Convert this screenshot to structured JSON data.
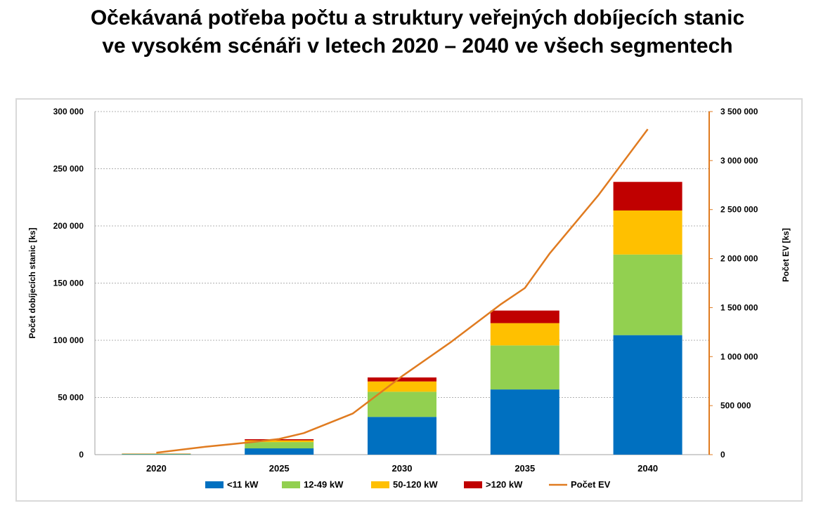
{
  "title_line1": "Očekávaná potřeba počtu a struktury veřejných dobíjecích stanic",
  "title_line2": "ve vysokém scénáři v letech 2020 – 2040 ve všech segmentech",
  "chart_data": {
    "type": "bar",
    "stacked": true,
    "categories": [
      "2020",
      "2025",
      "2030",
      "2035",
      "2040"
    ],
    "series": [
      {
        "name": "<11 kW",
        "color": "#0070c0",
        "values": [
          300,
          5500,
          33000,
          57000,
          104500
        ]
      },
      {
        "name": "12-49 kW",
        "color": "#92d050",
        "values": [
          400,
          5500,
          22000,
          38500,
          70500
        ]
      },
      {
        "name": "50-120 kW",
        "color": "#ffc000",
        "values": [
          200,
          1500,
          9000,
          19500,
          38500
        ]
      },
      {
        "name": ">120 kW",
        "color": "#c00000",
        "values": [
          100,
          1000,
          3500,
          11000,
          25000
        ]
      }
    ],
    "line_series": {
      "name": "Počet EV",
      "color": "#e07b20",
      "axis": "right",
      "x": [
        2020,
        2022,
        2024,
        2025,
        2026,
        2028,
        2030,
        2032,
        2034,
        2035,
        2036,
        2038,
        2040
      ],
      "values": [
        20000,
        80000,
        130000,
        160000,
        220000,
        420000,
        800000,
        1150000,
        1530000,
        1700000,
        2050000,
        2650000,
        3320000
      ]
    },
    "ylabel": "Počet dobíjecích stanic [ks]",
    "ylabel_right": "Počet EV [ks]",
    "ylim": [
      0,
      300000
    ],
    "ylim_right": [
      0,
      3500000
    ],
    "yticks": [
      "0",
      "50 000",
      "100 000",
      "150 000",
      "200 000",
      "250 000",
      "300 000"
    ],
    "yticks_right": [
      "0",
      "500 000",
      "1 000 000",
      "1 500 000",
      "2 000 000",
      "2 500 000",
      "3 000 000",
      "3 500 000"
    ],
    "grid": true,
    "legend_position": "bottom"
  }
}
